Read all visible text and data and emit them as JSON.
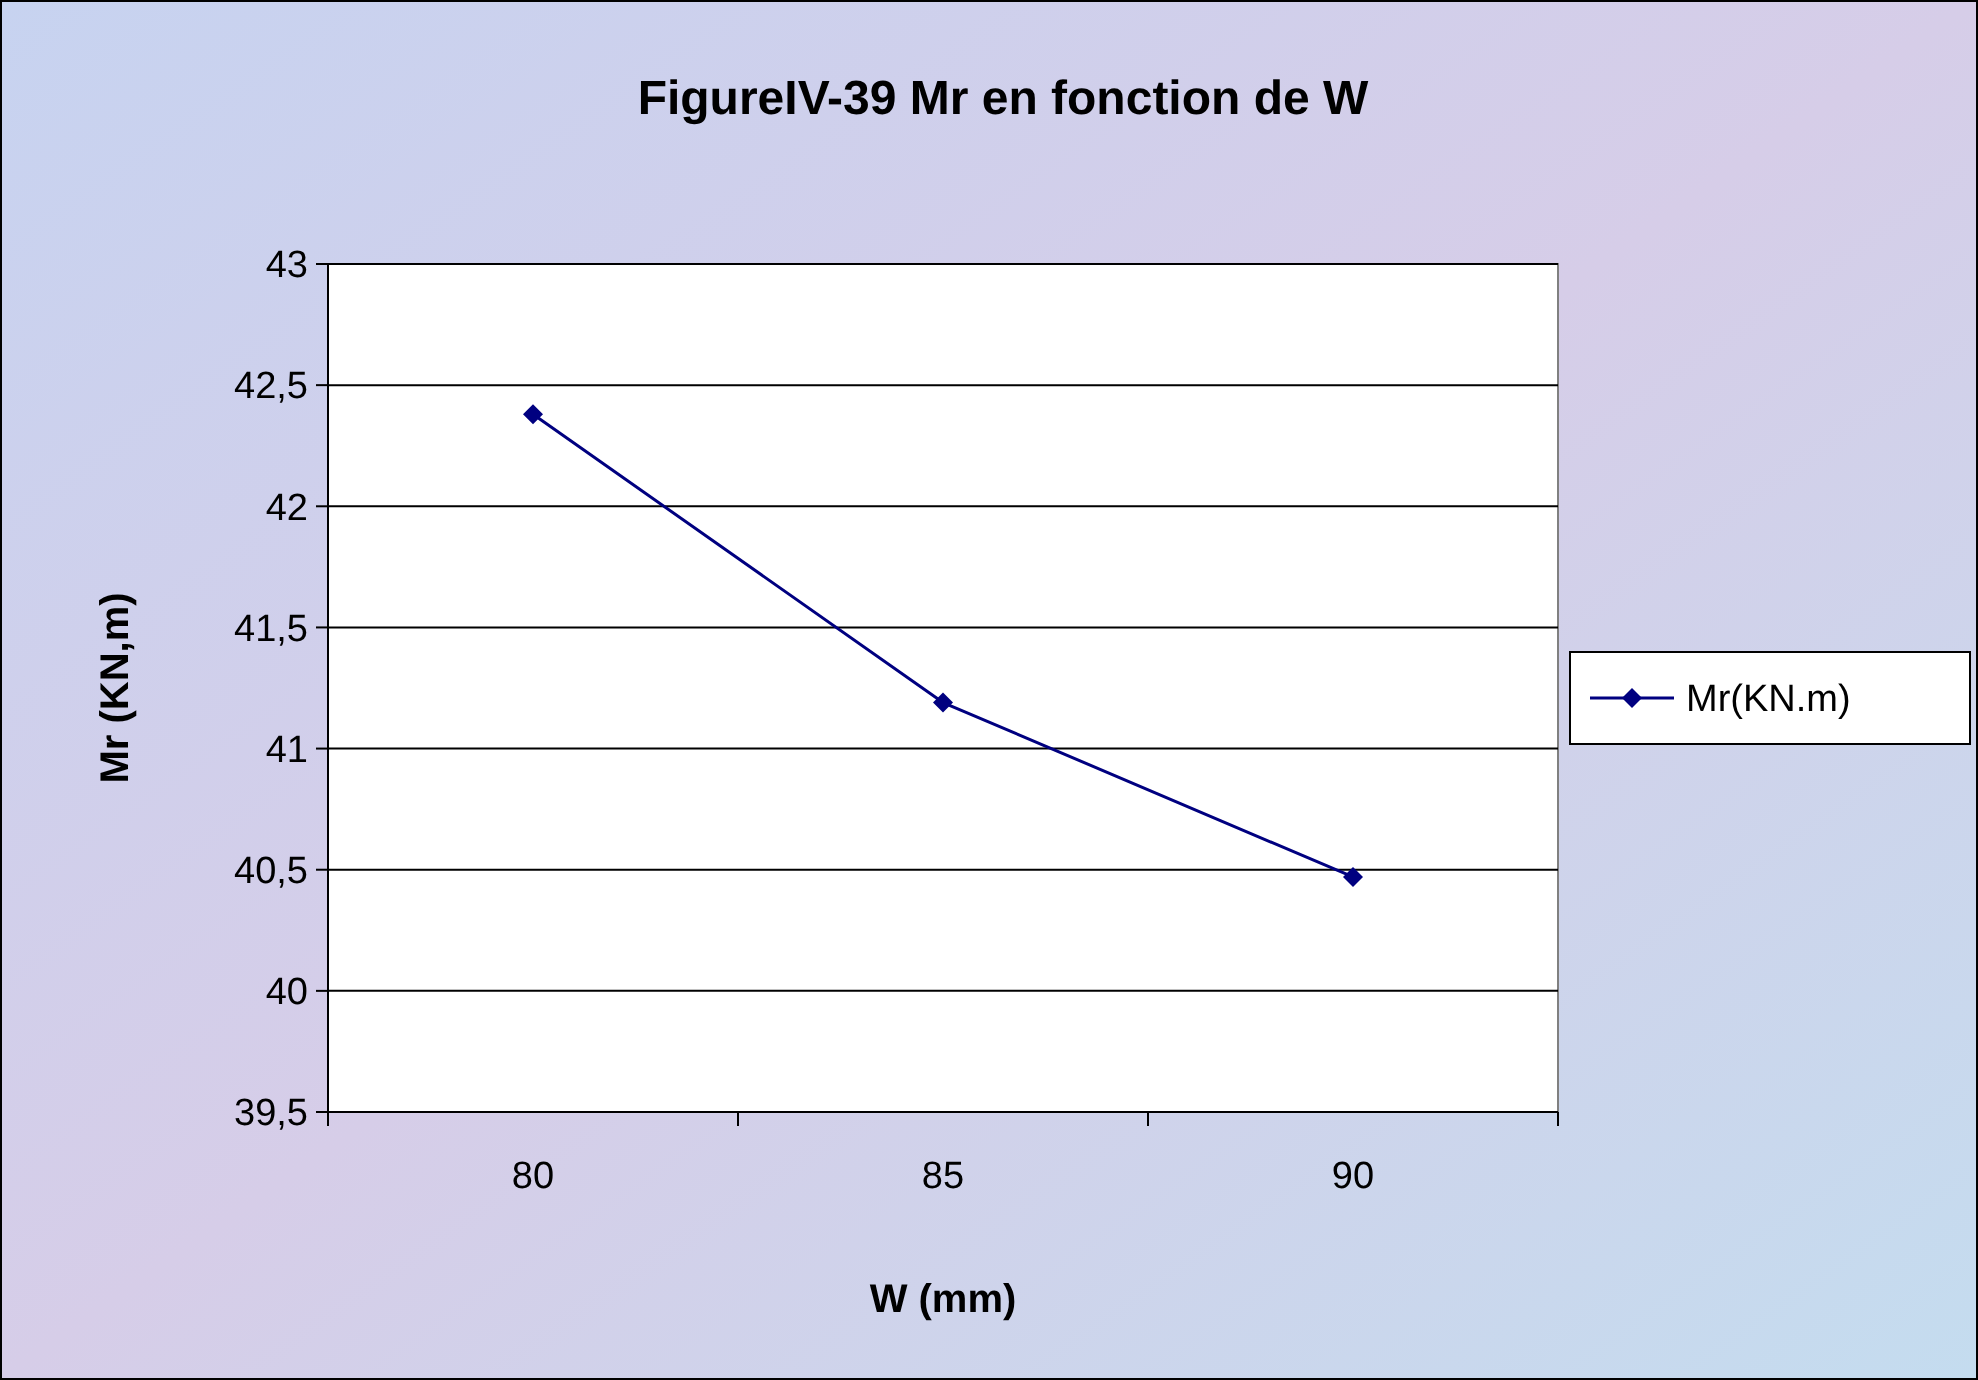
{
  "chart_data": {
    "type": "line",
    "title": "FigureIV-39 Mr en fonction de W",
    "xlabel": "W (mm)",
    "ylabel": "Mr (KN,m)",
    "categories": [
      "80",
      "85",
      "90"
    ],
    "series": [
      {
        "name": "Mr(KN.m)",
        "color": "#000080",
        "values": [
          42.38,
          41.19,
          40.47
        ]
      }
    ],
    "ylim": [
      39.5,
      43
    ],
    "yticks": [
      {
        "value": 39.5,
        "label": "39,5"
      },
      {
        "value": 40,
        "label": "40"
      },
      {
        "value": 40.5,
        "label": "40,5"
      },
      {
        "value": 41,
        "label": "41"
      },
      {
        "value": 41.5,
        "label": "41,5"
      },
      {
        "value": 42,
        "label": "42"
      },
      {
        "value": 42.5,
        "label": "42,5"
      },
      {
        "value": 43,
        "label": "43"
      }
    ],
    "grid": "y",
    "legend": "right",
    "marker": "diamond",
    "line_style": "solid"
  }
}
